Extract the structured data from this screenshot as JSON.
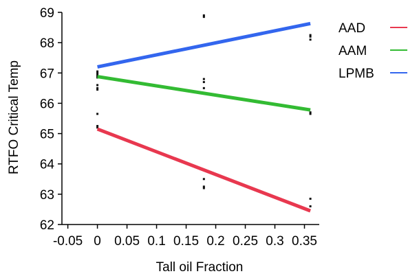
{
  "chart_data": {
    "type": "scatter",
    "title": "",
    "xlabel": "Tall oil Fraction",
    "ylabel": "RTFO Critical Temp",
    "xlim": [
      -0.06,
      0.375
    ],
    "ylim": [
      62,
      69
    ],
    "xticks": [
      -0.05,
      0,
      0.05,
      0.1,
      0.15,
      0.2,
      0.25,
      0.3,
      0.35
    ],
    "xtick_labels": [
      "-0.05",
      "0",
      "0.05",
      "0.1",
      "0.15",
      "0.2",
      "0.25",
      "0.3",
      "0.35"
    ],
    "yticks": [
      62,
      63,
      64,
      65,
      66,
      67,
      68,
      69
    ],
    "ytick_labels": [
      "62",
      "63",
      "64",
      "65",
      "66",
      "67",
      "68",
      "69"
    ],
    "grid": false,
    "legend_position": "right",
    "points": {
      "color": "#111111",
      "x": [
        0,
        0,
        0,
        0,
        0,
        0,
        0,
        0,
        0,
        0,
        0,
        0.18,
        0.18,
        0.18,
        0.18,
        0.18,
        0.18,
        0.18,
        0.18,
        0.36,
        0.36,
        0.36,
        0.36,
        0.36,
        0.36,
        0.36
      ],
      "y": [
        67.05,
        66.95,
        66.85,
        66.6,
        66.45,
        65.65,
        65.25,
        65.2,
        67.0,
        66.9,
        66.5,
        68.9,
        68.85,
        66.8,
        66.7,
        66.5,
        63.5,
        63.25,
        63.2,
        68.25,
        68.2,
        68.1,
        65.7,
        65.65,
        62.85,
        62.6
      ]
    },
    "series": [
      {
        "name": "AAD",
        "color": "#e8384f",
        "x": [
          0,
          0.36
        ],
        "y": [
          65.15,
          62.45
        ]
      },
      {
        "name": "AAM",
        "color": "#33bb33",
        "x": [
          0,
          0.36
        ],
        "y": [
          66.88,
          65.78
        ]
      },
      {
        "name": "LPMB",
        "color": "#3366ee",
        "x": [
          0,
          0.36
        ],
        "y": [
          67.2,
          68.63
        ]
      }
    ]
  }
}
